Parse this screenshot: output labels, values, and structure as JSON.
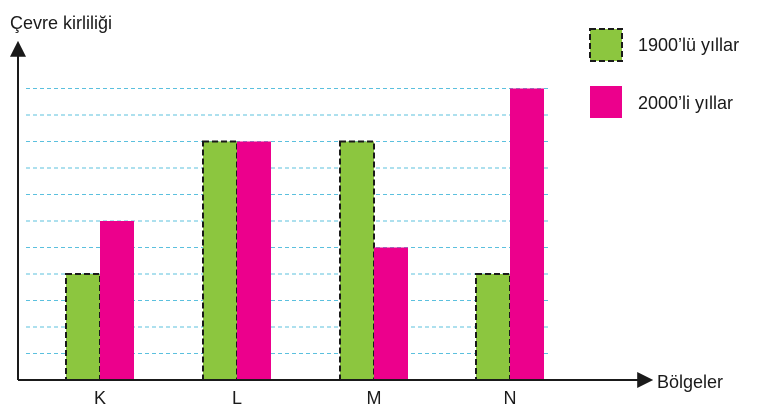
{
  "chart_data": {
    "type": "bar",
    "ylabel": "Çevre kirliliği",
    "xlabel": "Bölgeler",
    "categories": [
      "K",
      "L",
      "M",
      "N"
    ],
    "series": [
      {
        "name": "1900’lü yıllar",
        "color": "#8cc63f",
        "border": "dashed-black",
        "values": [
          4,
          9,
          9,
          4
        ]
      },
      {
        "name": "2000’li yıllar",
        "color": "#ec008c",
        "values": [
          6,
          9,
          5,
          11
        ]
      }
    ],
    "ylim": [
      0,
      14
    ],
    "grid": {
      "y": true,
      "style": "dashed",
      "color": "#5bc0de",
      "lines": 11
    },
    "y_ticks": false,
    "legend": {
      "placement": "top-right"
    }
  }
}
